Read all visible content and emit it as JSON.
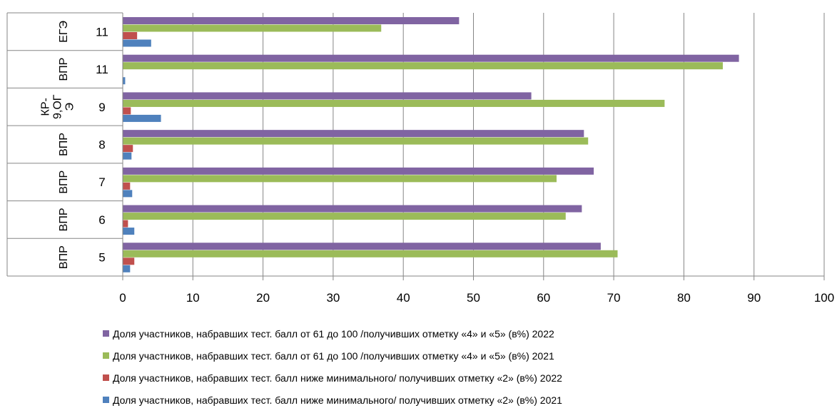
{
  "chart_data": {
    "type": "bar",
    "orientation": "horizontal",
    "categories": [
      {
        "group": "ВПР",
        "label": "5"
      },
      {
        "group": "ВПР",
        "label": "6"
      },
      {
        "group": "ВПР",
        "label": "7"
      },
      {
        "group": "ВПР",
        "label": "8"
      },
      {
        "group": "КР-9,ОГЭ",
        "label": "9"
      },
      {
        "group": "ВПР",
        "label": "11"
      },
      {
        "group": "ЕГЭ",
        "label": "11"
      }
    ],
    "series": [
      {
        "name": "Доля участников, набравших тест. балл от 61 до 100 /получивших отметку «4» и «5» (в%) 2022",
        "color": "#8064a2",
        "values": [
          68.1,
          65.4,
          67.1,
          65.7,
          58.2,
          87.8,
          47.9
        ]
      },
      {
        "name": "Доля участников, набравших тест. балл от 61 до 100 /получивших отметку «4» и «5» (в%) 2021",
        "color": "#9bbb59",
        "values": [
          70.5,
          63.1,
          61.8,
          66.3,
          77.2,
          85.5,
          36.8
        ]
      },
      {
        "name": "Доля участников, набравших тест. балл ниже  минимального/ получивших отметку «2» (в%) 2022",
        "color": "#c0504d",
        "values": [
          1.6,
          0.7,
          1.0,
          1.4,
          1.1,
          0.0,
          2.0
        ]
      },
      {
        "name": "Доля участников, набравших тест. балл ниже  минимального/ получивших отметку «2» (в%) 2021",
        "color": "#4f81bd",
        "values": [
          1.0,
          1.6,
          1.3,
          1.2,
          5.4,
          0.3,
          4.0
        ]
      }
    ],
    "xlim": [
      0,
      100
    ],
    "xticks": [
      0,
      10,
      20,
      30,
      40,
      50,
      60,
      70,
      80,
      90,
      100
    ],
    "xlabel": "",
    "ylabel": "",
    "title": "",
    "grid": "vertical",
    "legend_position": "bottom"
  }
}
